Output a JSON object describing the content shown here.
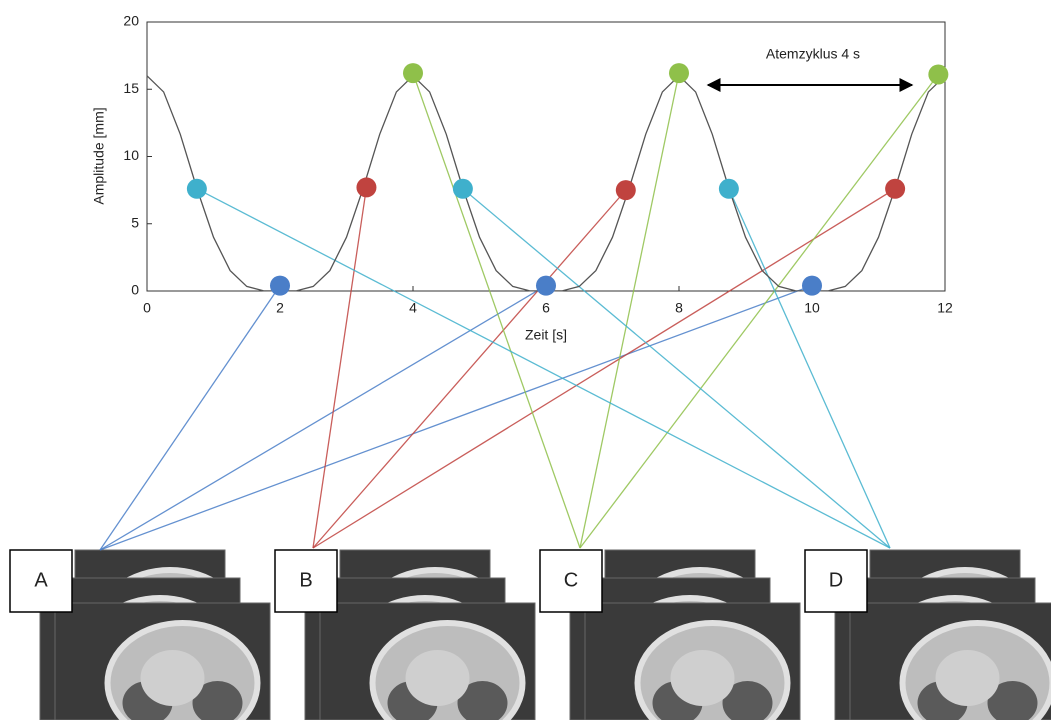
{
  "chart_data": {
    "type": "line",
    "xlabel": "Zeit [s]",
    "ylabel": "Amplitude [mm]",
    "annotation": "Atemzyklus 4 s",
    "xlim": [
      0,
      12
    ],
    "xticks": [
      0,
      2,
      4,
      6,
      8,
      10,
      12
    ],
    "ylim": [
      0,
      20
    ],
    "yticks": [
      0,
      5,
      10,
      15,
      20
    ],
    "series": [
      {
        "mode": "line",
        "color": "#555555",
        "x": [
          0,
          0.25,
          0.5,
          0.75,
          1,
          1.25,
          1.5,
          1.75,
          2,
          2.25,
          2.5,
          2.75,
          3,
          3.25,
          3.5,
          3.75,
          4,
          4.25,
          4.5,
          4.75,
          5,
          5.25,
          5.5,
          5.75,
          6,
          6.25,
          6.5,
          6.75,
          7,
          7.25,
          7.5,
          7.75,
          8,
          8.25,
          8.5,
          8.75,
          9,
          9.25,
          9.5,
          9.75,
          10,
          10.25,
          10.5,
          10.75,
          11,
          11.25,
          11.5,
          11.75,
          12
        ],
        "values": [
          16,
          14.8,
          11.66,
          7.63,
          4,
          1.52,
          0.34,
          0.02,
          0,
          0.02,
          0.34,
          1.52,
          4,
          7.63,
          11.66,
          14.8,
          16,
          14.8,
          11.66,
          7.63,
          4,
          1.52,
          0.34,
          0.02,
          0,
          0.02,
          0.34,
          1.52,
          4,
          7.63,
          11.66,
          14.8,
          16,
          14.8,
          11.66,
          7.63,
          4,
          1.52,
          0.34,
          0.02,
          0,
          0.02,
          0.34,
          1.52,
          4,
          7.63,
          11.66,
          14.8,
          16
        ]
      },
      {
        "mode": "markers",
        "color": "#4a7ec8",
        "x": [
          2,
          6,
          10
        ],
        "values": [
          0.4,
          0.4,
          0.4
        ]
      },
      {
        "mode": "markers",
        "color": "#c0433f",
        "x": [
          3.3,
          7.2,
          11.25
        ],
        "values": [
          7.7,
          7.5,
          7.6
        ]
      },
      {
        "mode": "markers",
        "color": "#8fc04a",
        "x": [
          4,
          8,
          11.9
        ],
        "values": [
          16.2,
          16.2,
          16.1
        ]
      },
      {
        "mode": "markers",
        "color": "#3fb0cc",
        "x": [
          0.75,
          4.75,
          8.75
        ],
        "values": [
          7.6,
          7.6,
          7.6
        ]
      }
    ]
  },
  "panels": [
    "A",
    "B",
    "C",
    "D"
  ]
}
